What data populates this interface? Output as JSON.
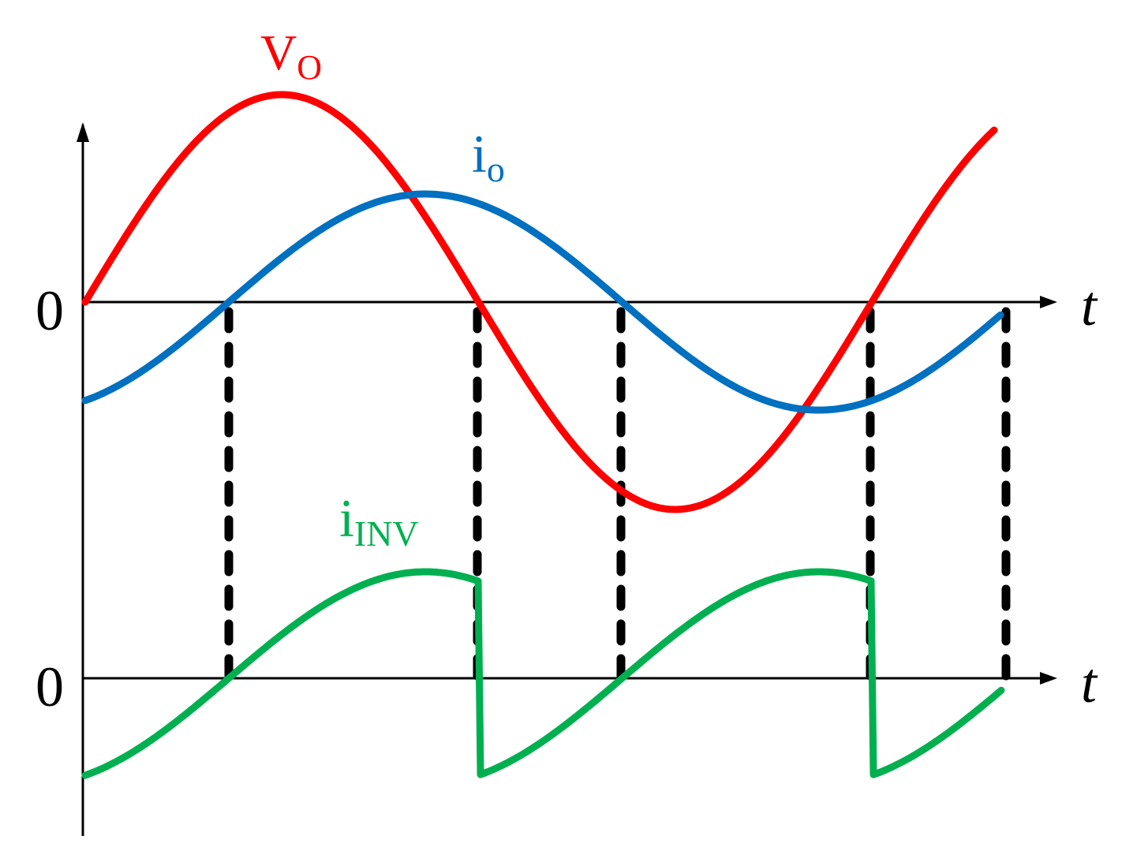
{
  "axes": [
    {
      "zero": "0",
      "time": "t"
    },
    {
      "zero": "0",
      "time": "t"
    }
  ],
  "curves": [
    {
      "main": "V",
      "sub": "O"
    },
    {
      "main": "i",
      "sub": "o"
    },
    {
      "main": "i",
      "sub": "INV"
    }
  ]
}
